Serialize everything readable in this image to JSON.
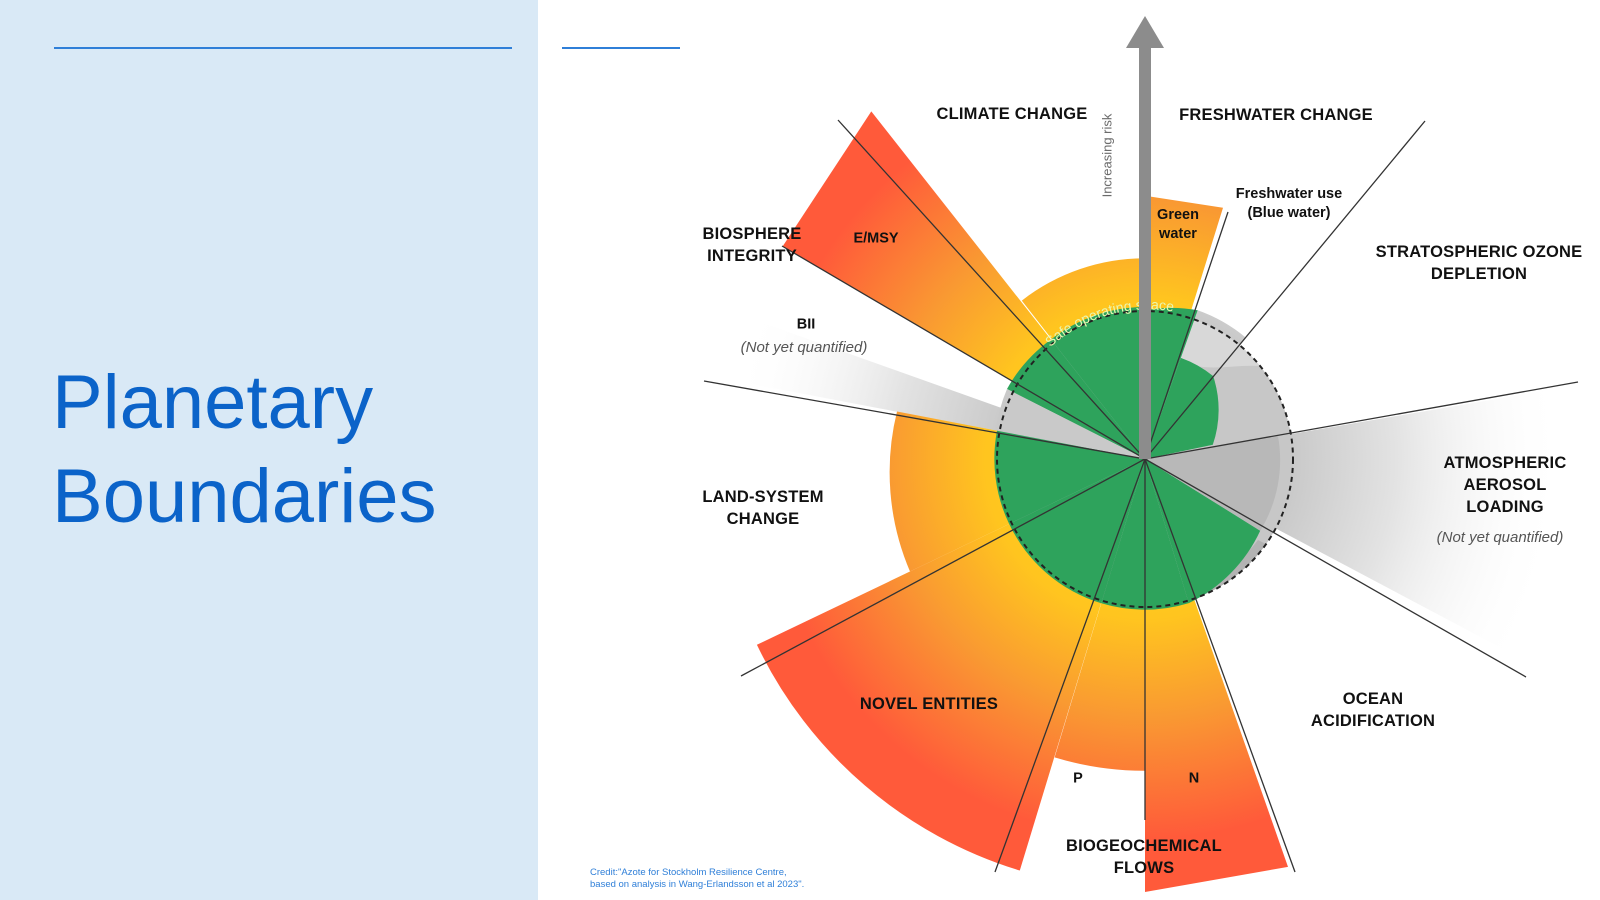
{
  "slide": {
    "title_lines": [
      "Planetary",
      "Boundaries"
    ],
    "credit_lines": [
      "Credit:\"Azote for Stockholm Resilience Centre,",
      "based on analysis in Wang-Erlandsson et al 2023\"."
    ]
  },
  "diagram": {
    "axis_label": "Increasing risk",
    "center_label": "Safe operating space",
    "categories": {
      "climate_change": "CLIMATE CHANGE",
      "freshwater_change": "FRESHWATER CHANGE",
      "stratospheric_ozone": [
        "STRATOSPHERIC OZONE",
        "DEPLETION"
      ],
      "atmospheric_aerosol": [
        "ATMOSPHERIC",
        "AEROSOL",
        "LOADING"
      ],
      "ocean_acidification": [
        "OCEAN",
        "ACIDIFICATION"
      ],
      "biogeochemical_flows": [
        "BIOGEOCHEMICAL",
        "FLOWS"
      ],
      "novel_entities": "NOVEL ENTITIES",
      "land_system_change": [
        "LAND-SYSTEM",
        "CHANGE"
      ],
      "biosphere_integrity": [
        "BIOSPHERE",
        "INTEGRITY"
      ]
    },
    "sub_labels": {
      "emsy": "E/MSY",
      "bii": "BII",
      "green_water": [
        "Green",
        "water"
      ],
      "blue_water": [
        "Freshwater use",
        "(Blue water)"
      ],
      "p": "P",
      "n": "N"
    },
    "not_quantified": "(Not yet quantified)",
    "colors": {
      "high_risk": "#ff6a3d",
      "increasing_risk": "#f7a62a",
      "safe": "#2ea35c",
      "not_quantified": "#c4c4c4",
      "panel": "#d9e9f6",
      "title": "#0b63c9"
    }
  }
}
